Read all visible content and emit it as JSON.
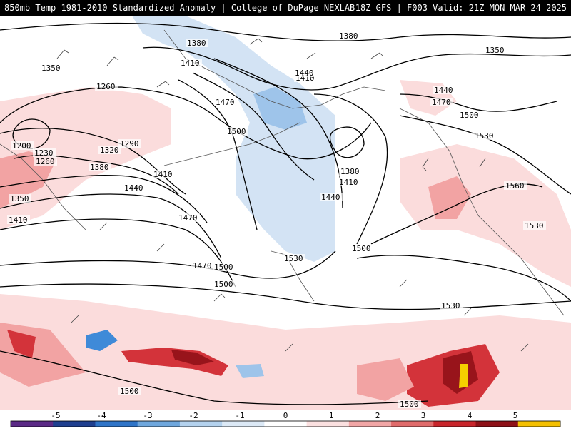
{
  "header": {
    "left": "850mb Temp 1981-2010 Standardized Anomaly | College of DuPage NEXLAB",
    "right": "18Z GFS | F003 Valid: 21Z MON MAR 24 2025"
  },
  "contour_labels": [
    "1260",
    "1380",
    "1410",
    "1350",
    "1380",
    "1350",
    "1200",
    "1230",
    "1260",
    "1290",
    "1320",
    "1470",
    "1500",
    "1380",
    "1410",
    "1440",
    "1470",
    "1410",
    "1350",
    "1410",
    "1440",
    "1440",
    "1470",
    "1500",
    "1380",
    "1410",
    "1440",
    "1470",
    "1500",
    "1530",
    "1560",
    "1530",
    "1500",
    "1500",
    "1530",
    "1530",
    "1500",
    "1500"
  ],
  "colorbar": {
    "ticks": [
      "-5",
      "-4",
      "-3",
      "-2",
      "-1",
      "0",
      "1",
      "2",
      "3",
      "4",
      "5"
    ],
    "colors": [
      "#5b2a86",
      "#1f3f8f",
      "#2f74c7",
      "#6fa7dd",
      "#b4d2ee",
      "#dce9f6",
      "#ffffff",
      "#fbe0e0",
      "#f1a5a5",
      "#e06b6b",
      "#c8252b",
      "#8e1117",
      "#f5c000"
    ]
  },
  "anomaly_colors": {
    "light_blue": "#d3e3f4",
    "mid_blue": "#9ec4ea",
    "blue": "#3f8ad8",
    "light_red": "#fbdcdc",
    "mid_red": "#f2a3a3",
    "red": "#d3333a",
    "dark_red": "#98141b",
    "yellow": "#f5d000"
  }
}
